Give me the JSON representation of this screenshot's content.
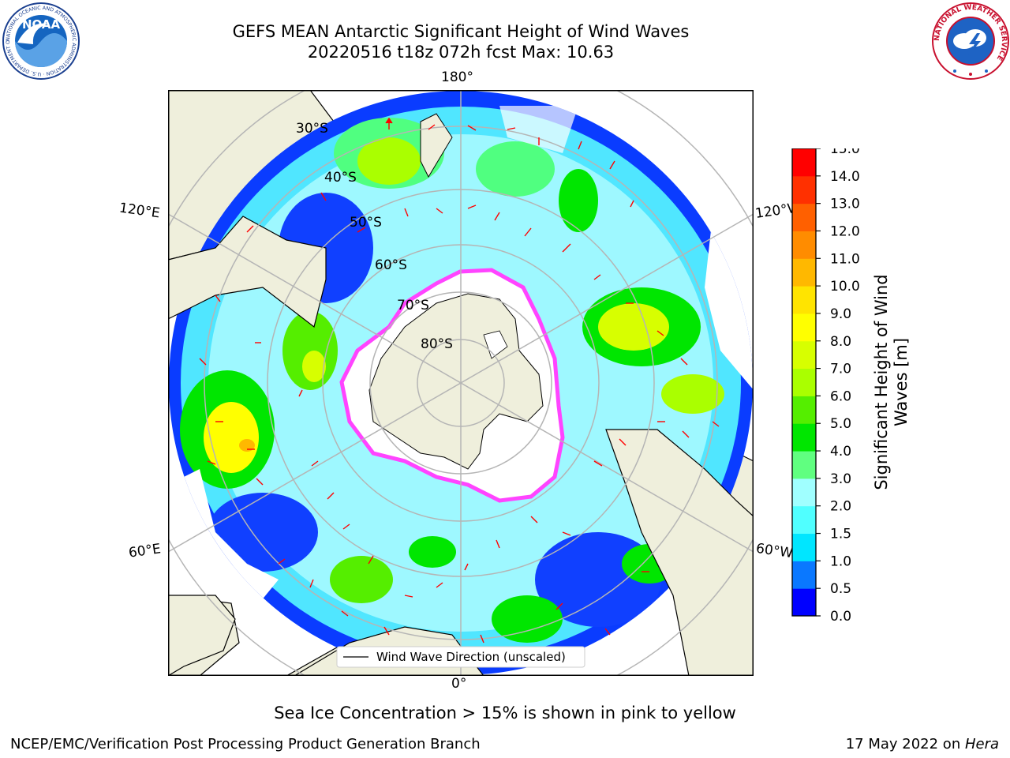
{
  "title": {
    "line1": "GEFS MEAN Antarctic Significant Height of Wind Waves",
    "line2": "20220516 t18z 072h fcst   Max: 10.63"
  },
  "logos": {
    "noaa": "NOAA",
    "noaa_ring": "NATIONAL OCEANIC AND ATMOSPHERIC ADMINISTRATION · U.S. DEPARTMENT OF COMMERCE",
    "nws_ring": "NATIONAL WEATHER SERVICE"
  },
  "map": {
    "projection": "south-polar-stereographic",
    "longitude_labels": {
      "top": "180°",
      "bottom": "0°",
      "upper_left": "120°E",
      "upper_right": "120°W",
      "lower_left": "60°E",
      "lower_right": "60°W"
    },
    "latitude_labels": [
      "30°S",
      "40°S",
      "50°S",
      "60°S",
      "70°S",
      "80°S"
    ],
    "legend": "Wind Wave Direction (unscaled)",
    "colors": {
      "land": "#efefdc",
      "arrow": "#ff0000",
      "grid": "#b5b5b5",
      "sea_ice": "#ff44ff"
    }
  },
  "colorbar": {
    "title_line1": "Significant Height of Wind",
    "title_line2": "Waves [m]",
    "ticks": [
      "0.0",
      "0.5",
      "1.0",
      "1.5",
      "2.0",
      "3.0",
      "4.0",
      "5.0",
      "6.0",
      "7.0",
      "8.0",
      "9.0",
      "10.0",
      "11.0",
      "12.0",
      "13.0",
      "14.0",
      "15.0"
    ],
    "colors": [
      "#0000ff",
      "#0a78ff",
      "#00e6ff",
      "#50ffff",
      "#a0ffff",
      "#60ff80",
      "#00e600",
      "#55ee00",
      "#aaff00",
      "#d7ff00",
      "#ffff00",
      "#ffe400",
      "#ffb800",
      "#ff8c00",
      "#ff6000",
      "#ff3000",
      "#ff0000"
    ]
  },
  "caption": "Sea Ice Concentration > 15% is shown in pink to yellow",
  "footer": {
    "left": "NCEP/EMC/Verification Post Processing Product Generation Branch",
    "right_prefix": "17 May 2022 on ",
    "right_machine": "Hera"
  }
}
